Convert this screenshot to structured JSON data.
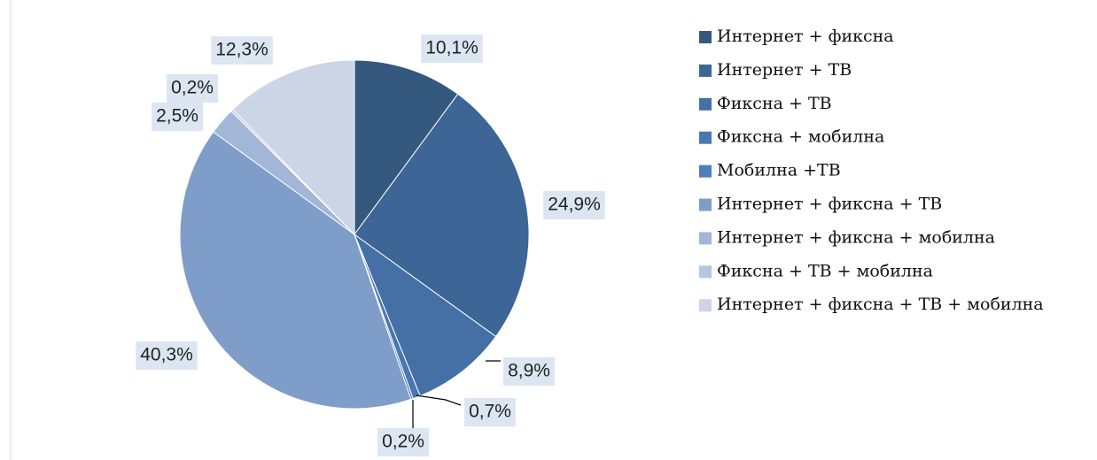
{
  "chart_data": {
    "type": "pie",
    "categories": [
      "Интернет + фиксна",
      "Интернет + ТВ",
      "Фиксна + ТВ",
      "Фиксна + мобилна",
      "Мобилна +ТВ",
      "Интернет + фиксна + ТВ",
      "Интернет + фиксна + мобилна",
      "Фиксна + ТВ + мобилна",
      "Интернет + фиксна + ТВ + мобилна"
    ],
    "values": [
      10.1,
      24.9,
      8.9,
      0.7,
      0.2,
      40.3,
      2.5,
      0.2,
      12.3
    ],
    "value_labels": [
      "10,1%",
      "24,9%",
      "8,9%",
      "0,7%",
      "0,2%",
      "40,3%",
      "2,5%",
      "0,2%",
      "12,3%"
    ],
    "colors": [
      "#35587f",
      "#3d6595",
      "#4470a6",
      "#4977b2",
      "#4f7fba",
      "#7f9dc9",
      "#a2b6d8",
      "#b6c5e0",
      "#ccd5e6"
    ],
    "legend": "right"
  }
}
